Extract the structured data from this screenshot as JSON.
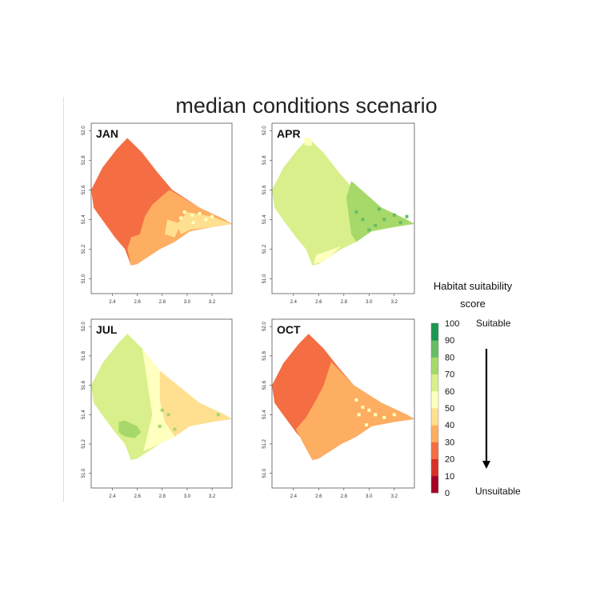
{
  "title": "median conditions scenario",
  "colors": {
    "frame": "#555555",
    "tick_text": "#333333",
    "scale": [
      "#a50026",
      "#d73027",
      "#f46d43",
      "#fdae61",
      "#fee090",
      "#ffffbf",
      "#d9ef8b",
      "#a6d96a",
      "#66bd63",
      "#1a9850"
    ]
  },
  "chart_data": [
    {
      "type": "heatmap",
      "panel_label": "JAN",
      "xlim": [
        2.23,
        3.36
      ],
      "ylim": [
        50.9,
        52.05
      ],
      "xticks": [
        "2.4",
        "2.6",
        "2.8",
        "3.0",
        "3.2"
      ],
      "yticks": [
        "51.0",
        "51.2",
        "51.4",
        "51.6",
        "51.8",
        "52.0"
      ],
      "regions": [
        {
          "name": "outer",
          "score": 25,
          "color": "#f46d43",
          "points": [
            [
              2.52,
              51.95
            ],
            [
              2.64,
              51.85
            ],
            [
              2.75,
              51.73
            ],
            [
              2.88,
              51.6
            ],
            [
              3.1,
              51.48
            ],
            [
              3.3,
              51.4
            ],
            [
              3.36,
              51.37
            ],
            [
              3.2,
              51.35
            ],
            [
              3.02,
              51.32
            ],
            [
              2.9,
              51.25
            ],
            [
              2.78,
              51.2
            ],
            [
              2.6,
              51.1
            ],
            [
              2.55,
              51.09
            ],
            [
              2.5,
              51.2
            ],
            [
              2.42,
              51.28
            ],
            [
              2.3,
              51.42
            ],
            [
              2.25,
              51.48
            ],
            [
              2.23,
              51.6
            ],
            [
              2.32,
              51.75
            ],
            [
              2.44,
              51.88
            ]
          ]
        },
        {
          "name": "south-east",
          "score": 35,
          "color": "#fdae61",
          "points": [
            [
              2.86,
              51.6
            ],
            [
              3.1,
              51.48
            ],
            [
              3.3,
              51.4
            ],
            [
              3.36,
              51.37
            ],
            [
              3.2,
              51.35
            ],
            [
              3.02,
              51.32
            ],
            [
              2.9,
              51.25
            ],
            [
              2.78,
              51.2
            ],
            [
              2.6,
              51.1
            ],
            [
              2.55,
              51.09
            ],
            [
              2.52,
              51.2
            ],
            [
              2.55,
              51.28
            ],
            [
              2.62,
              51.3
            ],
            [
              2.66,
              51.42
            ],
            [
              2.72,
              51.5
            ],
            [
              2.8,
              51.56
            ]
          ]
        },
        {
          "name": "coast",
          "score": 45,
          "color": "#fee090",
          "points": [
            [
              3.0,
              51.45
            ],
            [
              3.2,
              51.42
            ],
            [
              3.36,
              51.37
            ],
            [
              3.2,
              51.35
            ],
            [
              3.02,
              51.33
            ],
            [
              2.95,
              51.3
            ],
            [
              2.92,
              51.37
            ]
          ]
        },
        {
          "name": "nearshore",
          "score": 45,
          "color": "#fee090",
          "points": [
            [
              2.84,
              51.4
            ],
            [
              2.95,
              51.37
            ],
            [
              2.9,
              51.28
            ],
            [
              2.82,
              51.3
            ]
          ]
        }
      ],
      "speckles": [
        {
          "score": 55,
          "color": "#ffffbf",
          "points": [
            [
              2.98,
              51.45
            ],
            [
              3.04,
              51.43
            ],
            [
              3.1,
              51.44
            ],
            [
              3.15,
              51.4
            ],
            [
              3.05,
              51.38
            ],
            [
              2.95,
              51.41
            ],
            [
              3.2,
              51.42
            ]
          ]
        }
      ]
    },
    {
      "type": "heatmap",
      "panel_label": "APR",
      "xlim": [
        2.23,
        3.36
      ],
      "ylim": [
        50.9,
        52.05
      ],
      "xticks": [
        "2.4",
        "2.6",
        "2.8",
        "3.0",
        "3.2"
      ],
      "yticks": [
        "51.0",
        "51.2",
        "51.4",
        "51.6",
        "51.8",
        "52.0"
      ],
      "regions": [
        {
          "name": "outer",
          "score": 65,
          "color": "#d9ef8b",
          "points": [
            [
              2.52,
              51.95
            ],
            [
              2.64,
              51.85
            ],
            [
              2.75,
              51.73
            ],
            [
              2.88,
              51.6
            ],
            [
              3.1,
              51.48
            ],
            [
              3.3,
              51.4
            ],
            [
              3.36,
              51.37
            ],
            [
              3.2,
              51.35
            ],
            [
              3.02,
              51.32
            ],
            [
              2.9,
              51.25
            ],
            [
              2.78,
              51.2
            ],
            [
              2.6,
              51.1
            ],
            [
              2.55,
              51.09
            ],
            [
              2.5,
              51.2
            ],
            [
              2.42,
              51.28
            ],
            [
              2.3,
              51.42
            ],
            [
              2.25,
              51.48
            ],
            [
              2.23,
              51.6
            ],
            [
              2.32,
              51.75
            ],
            [
              2.44,
              51.88
            ]
          ]
        },
        {
          "name": "east",
          "score": 75,
          "color": "#a6d96a",
          "points": [
            [
              2.86,
              51.66
            ],
            [
              3.1,
              51.48
            ],
            [
              3.3,
              51.4
            ],
            [
              3.36,
              51.37
            ],
            [
              3.2,
              51.35
            ],
            [
              3.02,
              51.32
            ],
            [
              2.9,
              51.25
            ],
            [
              2.86,
              51.3
            ],
            [
              2.84,
              51.42
            ],
            [
              2.82,
              51.55
            ]
          ]
        },
        {
          "name": "north-tip",
          "score": 55,
          "color": "#ffffbf",
          "points": [
            [
              2.48,
              51.95
            ],
            [
              2.54,
              51.95
            ],
            [
              2.55,
              51.9
            ],
            [
              2.49,
              51.9
            ]
          ]
        },
        {
          "name": "south-tip",
          "score": 55,
          "color": "#ffffbf",
          "points": [
            [
              2.58,
              51.16
            ],
            [
              2.78,
              51.22
            ],
            [
              2.65,
              51.12
            ],
            [
              2.56,
              51.1
            ]
          ]
        }
      ],
      "speckles": [
        {
          "score": 85,
          "color": "#66bd63",
          "points": [
            [
              3.3,
              51.42
            ],
            [
              3.25,
              51.38
            ],
            [
              3.08,
              51.47
            ],
            [
              2.95,
              51.4
            ],
            [
              3.05,
              51.36
            ],
            [
              3.12,
              51.4
            ],
            [
              3.2,
              51.43
            ],
            [
              2.9,
              51.45
            ],
            [
              3.0,
              51.33
            ]
          ]
        }
      ]
    },
    {
      "type": "heatmap",
      "panel_label": "JUL",
      "xlim": [
        2.23,
        3.36
      ],
      "ylim": [
        50.9,
        52.05
      ],
      "xticks": [
        "2.4",
        "2.6",
        "2.8",
        "3.0",
        "3.2"
      ],
      "yticks": [
        "51.0",
        "51.2",
        "51.4",
        "51.6",
        "51.8",
        "52.0"
      ],
      "regions": [
        {
          "name": "outer",
          "score": 65,
          "color": "#d9ef8b",
          "points": [
            [
              2.52,
              51.95
            ],
            [
              2.64,
              51.85
            ],
            [
              2.75,
              51.73
            ],
            [
              2.88,
              51.6
            ],
            [
              3.1,
              51.48
            ],
            [
              3.3,
              51.4
            ],
            [
              3.36,
              51.37
            ],
            [
              3.2,
              51.35
            ],
            [
              3.02,
              51.32
            ],
            [
              2.9,
              51.25
            ],
            [
              2.78,
              51.2
            ],
            [
              2.6,
              51.1
            ],
            [
              2.55,
              51.09
            ],
            [
              2.5,
              51.2
            ],
            [
              2.42,
              51.28
            ],
            [
              2.3,
              51.42
            ],
            [
              2.25,
              51.48
            ],
            [
              2.23,
              51.6
            ],
            [
              2.32,
              51.75
            ],
            [
              2.44,
              51.88
            ]
          ]
        },
        {
          "name": "east",
          "score": 45,
          "color": "#fee090",
          "points": [
            [
              2.78,
              51.7
            ],
            [
              3.1,
              51.48
            ],
            [
              3.3,
              51.4
            ],
            [
              3.36,
              51.37
            ],
            [
              3.2,
              51.35
            ],
            [
              3.02,
              51.32
            ],
            [
              2.9,
              51.25
            ],
            [
              2.82,
              51.35
            ],
            [
              2.78,
              51.5
            ]
          ]
        },
        {
          "name": "transition",
          "score": 55,
          "color": "#ffffbf",
          "points": [
            [
              2.64,
              51.85
            ],
            [
              2.78,
              51.7
            ],
            [
              2.78,
              51.5
            ],
            [
              2.82,
              51.35
            ],
            [
              2.9,
              51.25
            ],
            [
              2.78,
              51.2
            ],
            [
              2.65,
              51.15
            ],
            [
              2.72,
              51.4
            ]
          ]
        },
        {
          "name": "central-blob",
          "score": 75,
          "color": "#a6d96a",
          "points": [
            [
              2.45,
              51.35
            ],
            [
              2.5,
              51.36
            ],
            [
              2.6,
              51.32
            ],
            [
              2.63,
              51.28
            ],
            [
              2.58,
              51.24
            ],
            [
              2.5,
              51.25
            ],
            [
              2.45,
              51.28
            ]
          ]
        }
      ],
      "speckles": [
        {
          "score": 75,
          "color": "#a6d96a",
          "points": [
            [
              2.8,
              51.43
            ],
            [
              2.85,
              51.4
            ],
            [
              2.9,
              51.3
            ],
            [
              3.25,
              51.4
            ],
            [
              2.78,
              51.32
            ]
          ]
        }
      ]
    },
    {
      "type": "heatmap",
      "panel_label": "OCT",
      "xlim": [
        2.23,
        3.36
      ],
      "ylim": [
        50.9,
        52.05
      ],
      "xticks": [
        "2.4",
        "2.6",
        "2.8",
        "3.0",
        "3.2"
      ],
      "yticks": [
        "51.0",
        "51.2",
        "51.4",
        "51.6",
        "51.8",
        "52.0"
      ],
      "regions": [
        {
          "name": "outer",
          "score": 25,
          "color": "#f46d43",
          "points": [
            [
              2.52,
              51.95
            ],
            [
              2.64,
              51.85
            ],
            [
              2.75,
              51.73
            ],
            [
              2.88,
              51.6
            ],
            [
              3.1,
              51.48
            ],
            [
              3.3,
              51.4
            ],
            [
              3.36,
              51.37
            ],
            [
              3.2,
              51.35
            ],
            [
              3.02,
              51.32
            ],
            [
              2.9,
              51.25
            ],
            [
              2.78,
              51.2
            ],
            [
              2.6,
              51.1
            ],
            [
              2.55,
              51.09
            ],
            [
              2.5,
              51.2
            ],
            [
              2.42,
              51.28
            ],
            [
              2.3,
              51.42
            ],
            [
              2.25,
              51.48
            ],
            [
              2.23,
              51.6
            ],
            [
              2.32,
              51.75
            ],
            [
              2.44,
              51.88
            ]
          ]
        },
        {
          "name": "south-east",
          "score": 35,
          "color": "#fdae61",
          "points": [
            [
              2.7,
              51.76
            ],
            [
              2.88,
              51.6
            ],
            [
              3.1,
              51.48
            ],
            [
              3.3,
              51.4
            ],
            [
              3.36,
              51.37
            ],
            [
              3.2,
              51.35
            ],
            [
              3.02,
              51.32
            ],
            [
              2.9,
              51.25
            ],
            [
              2.78,
              51.2
            ],
            [
              2.6,
              51.1
            ],
            [
              2.55,
              51.09
            ],
            [
              2.48,
              51.2
            ],
            [
              2.42,
              51.3
            ],
            [
              2.5,
              51.38
            ],
            [
              2.58,
              51.5
            ],
            [
              2.64,
              51.6
            ]
          ]
        }
      ],
      "speckles": [
        {
          "score": 55,
          "color": "#ffffbf",
          "points": [
            [
              2.9,
              51.5
            ],
            [
              2.95,
              51.45
            ],
            [
              3.0,
              51.43
            ],
            [
              3.05,
              51.4
            ],
            [
              2.92,
              51.4
            ],
            [
              3.12,
              51.38
            ],
            [
              3.2,
              51.4
            ],
            [
              2.98,
              51.33
            ]
          ]
        }
      ]
    }
  ],
  "legend": {
    "title": "Habitat suitability score",
    "ticks": [
      "0",
      "10",
      "20",
      "30",
      "40",
      "50",
      "60",
      "70",
      "80",
      "90",
      "100"
    ],
    "top_label": "Suitable",
    "bottom_label": "Unsuitable"
  }
}
